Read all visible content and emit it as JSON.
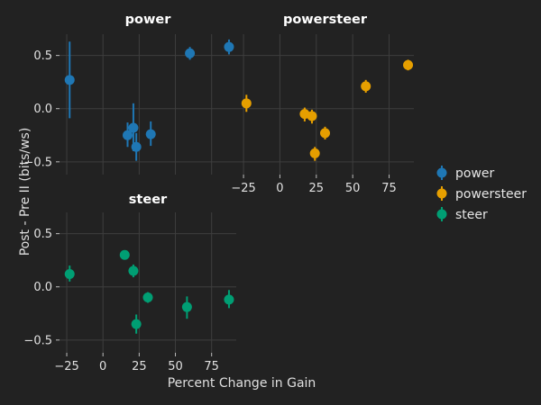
{
  "chart_data": {
    "type": "scatter",
    "xlabel": "Percent Change in Gain",
    "ylabel": "Post - Pre II (bits/ws)",
    "xticks": [
      -25,
      0,
      25,
      50,
      75
    ],
    "yticks": [
      0.5,
      0.0,
      -0.5
    ],
    "xlim": [
      -30,
      92
    ],
    "ylim": [
      -0.62,
      0.7
    ],
    "grid": true,
    "legend_position": "right",
    "panels": [
      {
        "title": "power",
        "color": "#1f77b4",
        "points": [
          {
            "x": -23,
            "y": 0.27,
            "lo": -0.09,
            "hi": 0.63
          },
          {
            "x": 17,
            "y": -0.25,
            "lo": -0.36,
            "hi": -0.13
          },
          {
            "x": 21,
            "y": -0.18,
            "lo": -0.4,
            "hi": 0.05
          },
          {
            "x": 23,
            "y": -0.36,
            "lo": -0.49,
            "hi": -0.23
          },
          {
            "x": 33,
            "y": -0.24,
            "lo": -0.35,
            "hi": -0.12
          },
          {
            "x": 60,
            "y": 0.52,
            "lo": 0.46,
            "hi": 0.58
          },
          {
            "x": 87,
            "y": 0.58,
            "lo": 0.51,
            "hi": 0.65
          }
        ]
      },
      {
        "title": "powersteer",
        "color": "#e69f00",
        "points": [
          {
            "x": -23,
            "y": 0.05,
            "lo": -0.03,
            "hi": 0.13
          },
          {
            "x": 17,
            "y": -0.05,
            "lo": -0.12,
            "hi": 0.01
          },
          {
            "x": 22,
            "y": -0.07,
            "lo": -0.14,
            "hi": -0.01
          },
          {
            "x": 24,
            "y": -0.42,
            "lo": -0.49,
            "hi": -0.36
          },
          {
            "x": 31,
            "y": -0.23,
            "lo": -0.29,
            "hi": -0.17
          },
          {
            "x": 59,
            "y": 0.21,
            "lo": 0.15,
            "hi": 0.27
          },
          {
            "x": 88,
            "y": 0.41,
            "lo": 0.36,
            "hi": 0.46
          }
        ]
      },
      {
        "title": "steer",
        "color": "#009e73",
        "points": [
          {
            "x": -23,
            "y": 0.12,
            "lo": 0.05,
            "hi": 0.2
          },
          {
            "x": 15,
            "y": 0.3,
            "lo": 0.26,
            "hi": 0.34
          },
          {
            "x": 21,
            "y": 0.15,
            "lo": 0.09,
            "hi": 0.21
          },
          {
            "x": 23,
            "y": -0.35,
            "lo": -0.44,
            "hi": -0.26
          },
          {
            "x": 31,
            "y": -0.1,
            "lo": -0.15,
            "hi": -0.05
          },
          {
            "x": 58,
            "y": -0.19,
            "lo": -0.3,
            "hi": -0.09
          },
          {
            "x": 87,
            "y": -0.12,
            "lo": -0.2,
            "hi": -0.03
          }
        ]
      }
    ],
    "legend": [
      {
        "label": "power",
        "color": "#1f77b4"
      },
      {
        "label": "powersteer",
        "color": "#e69f00"
      },
      {
        "label": "steer",
        "color": "#009e73"
      }
    ]
  }
}
